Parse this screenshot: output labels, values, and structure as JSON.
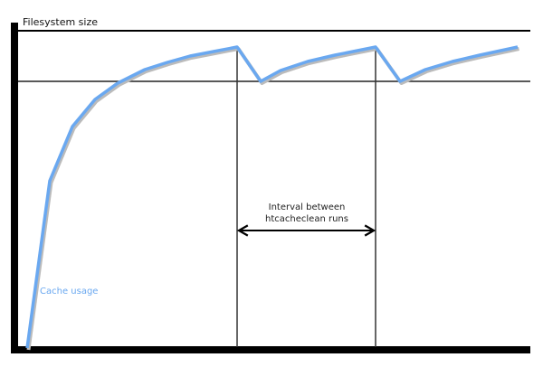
{
  "diagram": {
    "y_axis_label": "Filesystem size",
    "curve_label": "Cache usage",
    "interval_label_line1": "Interval between",
    "interval_label_line2": "htcacheclean runs",
    "colors": {
      "curve": "#6aa8f0",
      "axes": "#000000",
      "lines": "#222222",
      "curve_label": "#6aa8f0"
    }
  }
}
